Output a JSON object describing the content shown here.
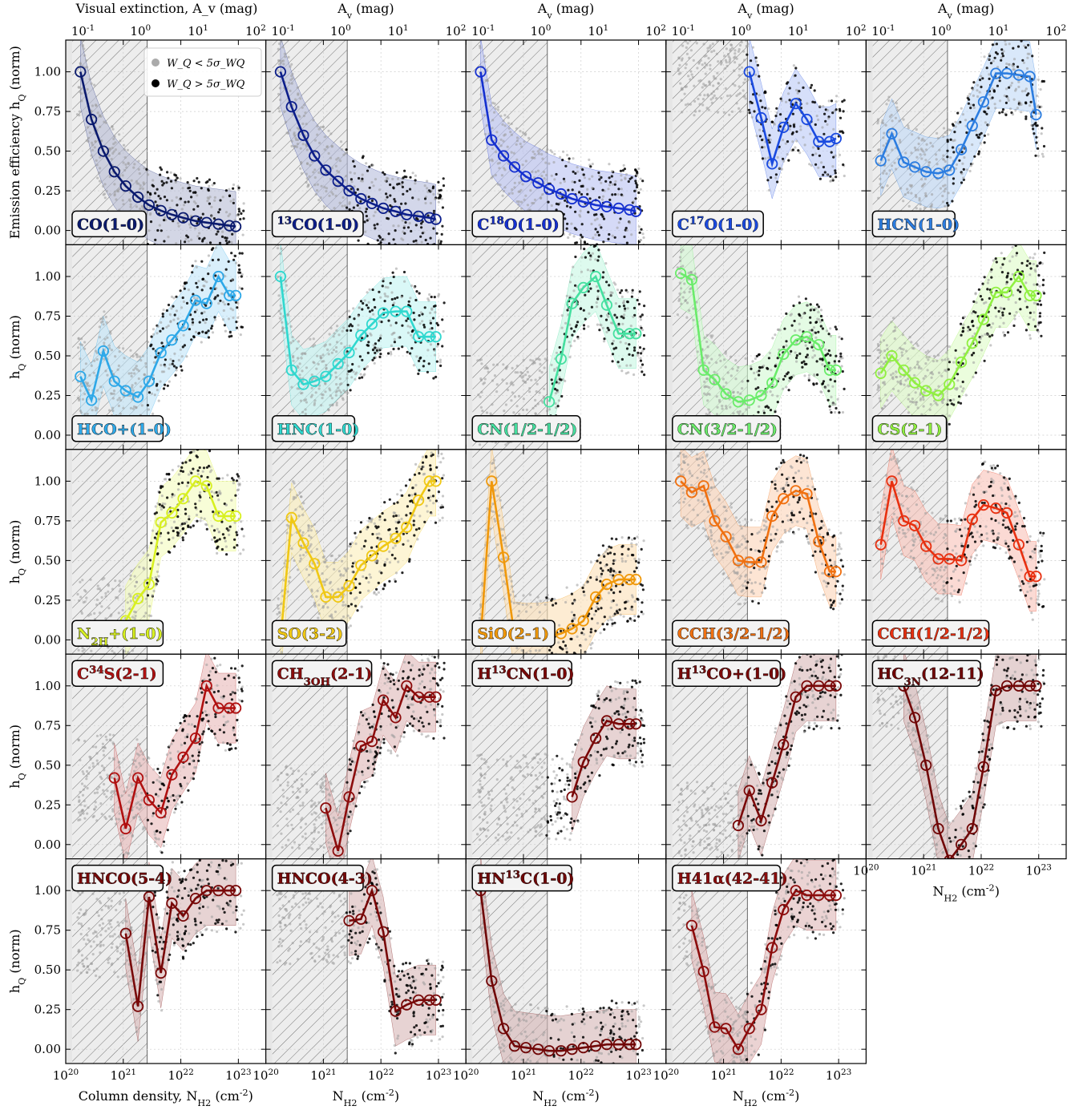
{
  "chart_data": {
    "type": "scatter",
    "figure": {
      "top_axis_label": "Visual extinction, A_v (mag)",
      "top_axis_label_short": "A_v (mag)",
      "bottom_axis_label": "Column density, N_H2 (cm^-2)",
      "bottom_axis_label_short": "N_H2 (cm^-2)",
      "left_axis_label_first_row": "Emission efficiency h_Q (norm)",
      "left_axis_label": "h_Q (norm)",
      "xscale": "log",
      "xlim": [
        1e+20,
        3e+23
      ],
      "ylim": [
        -0.09,
        1.2
      ],
      "yticks": [
        0.0,
        0.25,
        0.5,
        0.75,
        1.0
      ],
      "ytick_labels": [
        "0.00",
        "0.25",
        "0.50",
        "0.75",
        "1.00"
      ],
      "xtick_labels": [
        "10^20",
        "10^21",
        "10^22",
        "10^23"
      ],
      "top_tick_labels": [
        "10^-1",
        "10^0",
        "10^1",
        "10^2"
      ],
      "hatched_region_nh2": [
        1.3e+20,
        2.6e+21
      ],
      "legend": [
        {
          "label": "W_Q < 5σ_WQ",
          "color": "#aaaaaa"
        },
        {
          "label": "W_Q > 5σ_WQ",
          "color": "#000000"
        }
      ],
      "x_bins_nh2": [
        1.8e+20,
        2.8e+20,
        4.5e+20,
        7e+20,
        1.1e+21,
        1.8e+21,
        2.8e+21,
        4.5e+21,
        7e+21,
        1.1e+22,
        1.8e+22,
        2.8e+22,
        4.5e+22,
        7e+22,
        9e+22
      ]
    },
    "panels": [
      {
        "label": "CO(1-0)",
        "color": "#0a1a6e",
        "hatch_to": 2.6e+21,
        "y": [
          1.0,
          0.7,
          0.5,
          0.37,
          0.28,
          0.21,
          0.16,
          0.125,
          0.1,
          0.08,
          0.06,
          0.05,
          0.04,
          0.03,
          0.025
        ]
      },
      {
        "label": "13CO(1-0)",
        "color": "#0c1e8a",
        "hatch_to": 2.6e+21,
        "y": [
          1.0,
          0.78,
          0.6,
          0.47,
          0.38,
          0.31,
          0.25,
          0.2,
          0.17,
          0.14,
          0.12,
          0.1,
          0.09,
          0.08,
          0.07
        ]
      },
      {
        "label": "C18O(1-0)",
        "color": "#1530d0",
        "hatch_to": 2.6e+21,
        "y": [
          1.0,
          0.57,
          0.47,
          0.4,
          0.34,
          0.3,
          0.26,
          0.23,
          0.2,
          0.18,
          0.16,
          0.15,
          0.14,
          0.13,
          0.12
        ]
      },
      {
        "label": "C17O(1-0)",
        "color": "#1a4ae0",
        "hatch_to": 2.6e+21,
        "y": [
          null,
          null,
          null,
          null,
          null,
          null,
          1.0,
          0.71,
          0.42,
          0.65,
          0.8,
          0.7,
          0.56,
          0.56,
          0.58
        ]
      },
      {
        "label": "HCN(1-0)",
        "color": "#2c7de0",
        "hatch_to": 2.6e+21,
        "y": [
          0.44,
          0.61,
          0.43,
          0.4,
          0.37,
          0.36,
          0.38,
          0.51,
          0.66,
          0.81,
          0.99,
          0.99,
          0.98,
          0.97,
          0.73
        ]
      },
      {
        "label": "HCO+(1-0)",
        "color": "#2ea8e8",
        "hatch_to": 2.6e+21,
        "y": [
          0.37,
          0.22,
          0.53,
          0.34,
          0.28,
          0.24,
          0.34,
          0.52,
          0.6,
          0.69,
          0.85,
          0.83,
          1.0,
          0.88,
          0.88
        ]
      },
      {
        "label": "HNC(1-0)",
        "color": "#2fd8cf",
        "hatch_to": 2.6e+21,
        "y": [
          1.0,
          0.41,
          0.32,
          0.34,
          0.37,
          0.45,
          0.52,
          0.63,
          0.7,
          0.77,
          0.78,
          0.78,
          0.62,
          0.62,
          0.62
        ]
      },
      {
        "label": "CN(1/2-1/2)",
        "color": "#45e0a0",
        "hatch_to": 2.6e+21,
        "y": [
          null,
          null,
          null,
          null,
          null,
          null,
          0.21,
          0.48,
          0.83,
          0.93,
          1.0,
          0.82,
          0.64,
          0.64,
          0.64
        ]
      },
      {
        "label": "CN(3/2-1/2)",
        "color": "#6aec6a",
        "hatch_to": 2.6e+21,
        "y": [
          1.02,
          0.98,
          0.41,
          0.35,
          0.26,
          0.21,
          0.22,
          0.25,
          0.33,
          0.51,
          0.6,
          0.62,
          0.57,
          0.41,
          0.41
        ]
      },
      {
        "label": "CS(2-1)",
        "color": "#90f040",
        "hatch_to": 2.6e+21,
        "y": [
          0.39,
          0.5,
          0.41,
          0.33,
          0.28,
          0.25,
          0.32,
          0.46,
          0.58,
          0.73,
          0.9,
          0.9,
          1.0,
          0.88,
          0.88
        ]
      },
      {
        "label": "N2H+(1-0)",
        "color": "#d8f020",
        "hatch_to": 2.6e+21,
        "y": [
          null,
          null,
          null,
          null,
          0.12,
          0.26,
          0.35,
          0.74,
          0.8,
          0.89,
          1.0,
          0.97,
          0.78,
          0.78,
          0.78
        ]
      },
      {
        "label": "SO(3-2)",
        "color": "#f0c814",
        "hatch_to": 2.6e+21,
        "y": [
          0.0,
          0.77,
          0.61,
          0.48,
          0.27,
          0.27,
          0.34,
          0.47,
          0.53,
          0.59,
          0.64,
          0.71,
          0.88,
          1.0,
          1.0
        ]
      },
      {
        "label": "SiO(2-1)",
        "color": "#f0980a",
        "hatch_to": 2.6e+21,
        "y": [
          0.0,
          1.0,
          0.52,
          0.02,
          0.01,
          0.01,
          0.02,
          0.04,
          0.07,
          0.12,
          0.27,
          0.35,
          0.38,
          0.38,
          0.38
        ]
      },
      {
        "label": "CCH(3/2-1/2)",
        "color": "#f07010",
        "hatch_to": 2.6e+21,
        "y": [
          1.0,
          0.93,
          0.97,
          0.75,
          0.65,
          0.5,
          0.49,
          0.49,
          0.78,
          0.89,
          0.94,
          0.92,
          0.62,
          0.43,
          0.43
        ]
      },
      {
        "label": "CCH(1/2-1/2)",
        "color": "#e83010",
        "hatch_to": 2.6e+21,
        "y": [
          0.6,
          1.0,
          0.75,
          0.72,
          0.59,
          0.51,
          0.51,
          0.5,
          0.76,
          0.85,
          0.83,
          0.8,
          0.6,
          0.4,
          0.4
        ]
      },
      {
        "label": "C34S(2-1)",
        "color": "#b01010",
        "hatch_to": 2.6e+21,
        "y": [
          null,
          null,
          null,
          0.42,
          0.1,
          0.42,
          0.28,
          0.2,
          0.44,
          0.55,
          0.67,
          1.0,
          0.86,
          0.86,
          0.86
        ]
      },
      {
        "label": "CH3OH(2-1)",
        "color": "#8c0c0c",
        "hatch_to": 2.6e+21,
        "y": [
          null,
          null,
          null,
          null,
          0.23,
          -0.04,
          0.3,
          0.62,
          0.65,
          0.91,
          0.8,
          1.0,
          0.93,
          0.93,
          0.93
        ]
      },
      {
        "label": "H13CN(1-0)",
        "color": "#7a0808",
        "hatch_to": 2.6e+21,
        "y": [
          null,
          null,
          null,
          null,
          null,
          null,
          null,
          null,
          0.3,
          0.52,
          0.67,
          0.78,
          0.76,
          0.76,
          0.76
        ]
      },
      {
        "label": "H13CO+(1-0)",
        "color": "#7a0808",
        "hatch_to": 2.6e+21,
        "y": [
          null,
          null,
          null,
          null,
          null,
          0.12,
          0.34,
          0.15,
          0.39,
          0.63,
          0.93,
          1.0,
          1.0,
          1.0,
          1.0
        ]
      },
      {
        "label": "HC3N(12-11)",
        "color": "#700606",
        "hatch_to": 2.6e+21,
        "y": [
          null,
          null,
          1.0,
          0.8,
          0.5,
          0.1,
          -0.1,
          0.0,
          0.1,
          0.49,
          0.97,
          1.0,
          1.0,
          1.0,
          1.0
        ]
      },
      {
        "label": "HNCO(5-4)",
        "color": "#780808",
        "hatch_to": 2.6e+21,
        "y": [
          null,
          null,
          null,
          null,
          0.73,
          0.27,
          0.96,
          0.48,
          0.92,
          0.84,
          0.95,
          1.0,
          1.0,
          1.0,
          1.0
        ]
      },
      {
        "label": "HNCO(4-3)",
        "color": "#780808",
        "hatch_to": 2.6e+21,
        "y": [
          null,
          null,
          null,
          null,
          null,
          null,
          0.81,
          0.82,
          1.0,
          0.74,
          0.24,
          0.28,
          0.31,
          0.31,
          0.31
        ]
      },
      {
        "label": "HN13C(1-0)",
        "color": "#700606",
        "hatch_to": 2.6e+21,
        "y": [
          1.0,
          0.43,
          0.13,
          0.02,
          0.01,
          0.0,
          -0.01,
          -0.01,
          0.0,
          0.01,
          0.02,
          0.03,
          0.03,
          0.03,
          0.03
        ]
      },
      {
        "label": "H41α(42-41)",
        "color": "#8c0c0c",
        "hatch_to": 2.6e+21,
        "y": [
          null,
          0.78,
          0.49,
          0.14,
          0.13,
          0.0,
          0.13,
          0.25,
          0.64,
          0.88,
          1.0,
          0.97,
          0.97,
          0.97,
          0.97
        ]
      }
    ]
  }
}
